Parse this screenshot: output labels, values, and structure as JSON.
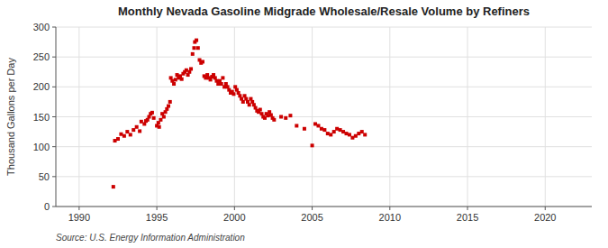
{
  "chart_data": {
    "type": "scatter",
    "title": "Monthly Nevada Gasoline Midgrade Wholesale/Resale Volume by Refiners",
    "ylabel": "Thousand Gallons per Day",
    "source": "Source: U.S. Energy Information Administration",
    "color": "#cc0000",
    "marker": "square",
    "grid": true,
    "xlim": [
      1988.5,
      2023
    ],
    "ylim": [
      0,
      300
    ],
    "xticks": [
      1990,
      1995,
      2000,
      2005,
      2010,
      2015,
      2020
    ],
    "yticks": [
      0,
      50,
      100,
      150,
      200,
      250,
      300
    ],
    "x": [
      1992.2,
      1992.3,
      1992.5,
      1992.7,
      1992.9,
      1993.1,
      1993.3,
      1993.5,
      1993.7,
      1993.9,
      1994.0,
      1994.2,
      1994.4,
      1994.6,
      1994.8,
      1994.3,
      1994.5,
      1994.7,
      1995.0,
      1995.1,
      1995.15,
      1995.25,
      1995.35,
      1995.45,
      1995.55,
      1995.65,
      1995.75,
      1995.85,
      1995.9,
      1996.0,
      1996.1,
      1996.2,
      1996.3,
      1996.4,
      1996.5,
      1996.6,
      1996.7,
      1996.8,
      1996.9,
      1997.0,
      1997.1,
      1997.2,
      1997.3,
      1997.4,
      1997.45,
      1997.55,
      1997.65,
      1997.75,
      1997.85,
      1997.95,
      1998.05,
      1998.15,
      1998.25,
      1998.35,
      1998.45,
      1998.55,
      1998.65,
      1998.75,
      1998.85,
      1998.95,
      1999.05,
      1999.15,
      1999.25,
      1999.35,
      1999.45,
      1999.55,
      1999.65,
      1999.75,
      1999.85,
      1999.95,
      2000.05,
      2000.15,
      2000.25,
      2000.35,
      2000.45,
      2000.55,
      2000.65,
      2000.75,
      2000.85,
      2000.95,
      2001.05,
      2001.15,
      2001.25,
      2001.35,
      2001.45,
      2001.55,
      2001.65,
      2001.75,
      2001.85,
      2001.95,
      2002.05,
      2002.15,
      2002.25,
      2002.35,
      2002.45,
      2002.55,
      2003.0,
      2003.3,
      2003.6,
      2004.0,
      2004.5,
      2005.0,
      2005.2,
      2005.4,
      2005.6,
      2005.8,
      2006.0,
      2006.2,
      2006.4,
      2006.6,
      2006.8,
      2007.0,
      2007.2,
      2007.4,
      2007.6,
      2007.8,
      2008.0,
      2008.2,
      2008.4
    ],
    "values": [
      33,
      110,
      113,
      121,
      118,
      125,
      120,
      128,
      133,
      126,
      142,
      138,
      145,
      155,
      148,
      143,
      150,
      157,
      135,
      140,
      133,
      145,
      155,
      150,
      158,
      163,
      168,
      175,
      215,
      210,
      205,
      212,
      220,
      215,
      218,
      213,
      222,
      225,
      228,
      220,
      225,
      230,
      255,
      265,
      275,
      278,
      265,
      245,
      240,
      242,
      218,
      215,
      220,
      215,
      212,
      217,
      220,
      215,
      210,
      205,
      210,
      205,
      215,
      200,
      205,
      200,
      195,
      190,
      192,
      188,
      200,
      195,
      190,
      185,
      180,
      175,
      185,
      180,
      175,
      170,
      180,
      175,
      170,
      165,
      160,
      158,
      162,
      155,
      150,
      148,
      155,
      152,
      158,
      153,
      148,
      145,
      150,
      148,
      152,
      135,
      130,
      102,
      138,
      135,
      130,
      128,
      122,
      120,
      125,
      130,
      128,
      125,
      122,
      120,
      115,
      118,
      122,
      125,
      120
    ]
  }
}
